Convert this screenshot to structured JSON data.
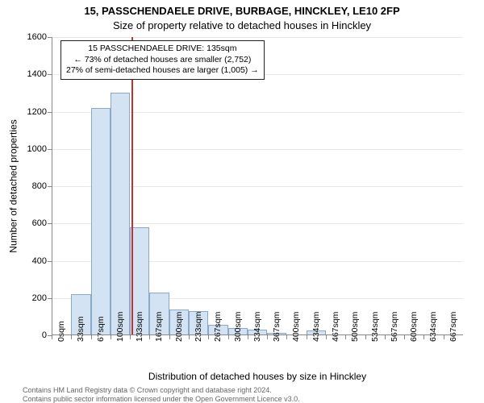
{
  "title": {
    "line1": "15, PASSCHENDAELE DRIVE, BURBAGE, HINCKLEY, LE10 2FP",
    "line2": "Size of property relative to detached houses in Hinckley"
  },
  "ylabel": "Number of detached properties",
  "xlabel": "Distribution of detached houses by size in Hinckley",
  "chart": {
    "type": "histogram",
    "ylim": [
      0,
      1600
    ],
    "ytick_step": 200,
    "background_color": "#ffffff",
    "grid_color": "#e8e8e8",
    "axis_color": "#888888",
    "bar_fill": "#d4e3f4",
    "bar_border": "#8aa8c8",
    "ref_line_color": "#c23030",
    "ref_value_sqm": 135,
    "x_categories": [
      "0sqm",
      "33sqm",
      "67sqm",
      "100sqm",
      "133sqm",
      "167sqm",
      "200sqm",
      "233sqm",
      "267sqm",
      "300sqm",
      "334sqm",
      "367sqm",
      "400sqm",
      "434sqm",
      "467sqm",
      "500sqm",
      "534sqm",
      "567sqm",
      "600sqm",
      "634sqm",
      "667sqm"
    ],
    "values": [
      0,
      220,
      1220,
      1300,
      580,
      230,
      140,
      130,
      55,
      40,
      30,
      15,
      0,
      25,
      0,
      0,
      0,
      0,
      0,
      0
    ],
    "bar_width_ratio": 1.0,
    "title_fontsize": 13,
    "label_fontsize": 12,
    "tick_fontsize": 11
  },
  "annotation": {
    "line1": "15 PASSCHENDAELE DRIVE: 135sqm",
    "line2": "← 73% of detached houses are smaller (2,752)",
    "line3": "27% of semi-detached houses are larger (1,005) →",
    "border_color": "#222222",
    "bg_color": "#ffffff",
    "fontsize": 10.5
  },
  "footer": {
    "line1": "Contains HM Land Registry data © Crown copyright and database right 2024.",
    "line2": "Contains public sector information licensed under the Open Government Licence v3.0."
  }
}
